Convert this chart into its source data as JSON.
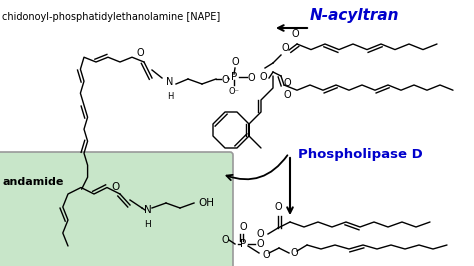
{
  "background_color": "#ffffff",
  "label_nape": "chidonoyl-phosphatidylethanolamine [NAPE]",
  "label_nacyltrans": "N-acyltran",
  "label_phospholipase": "Phospholipase D",
  "label_anandamide": "andamide",
  "blue_color": "#0000cc",
  "green_box_color": "#c8e6c9",
  "green_box_edge": "#999999",
  "fig_width": 4.74,
  "fig_height": 2.66,
  "dpi": 100
}
